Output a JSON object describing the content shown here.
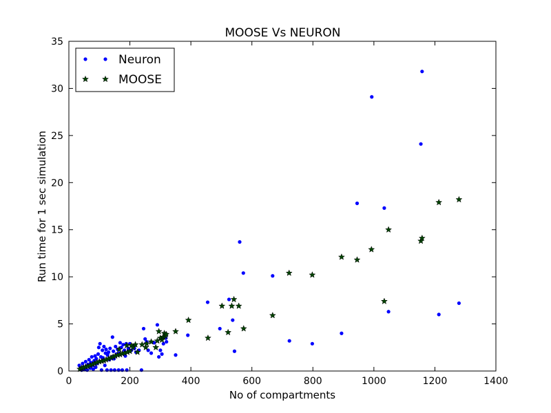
{
  "chart_data": {
    "type": "scatter",
    "title": "MOOSE Vs NEURON",
    "xlabel": "No of compartments",
    "ylabel": "Run time for 1 sec simulation",
    "xlim": [
      0,
      1400
    ],
    "ylim": [
      0,
      35
    ],
    "x_ticks": [
      0,
      200,
      400,
      600,
      800,
      1000,
      1200,
      1400
    ],
    "y_ticks": [
      0,
      5,
      10,
      15,
      20,
      25,
      30,
      35
    ],
    "grid": false,
    "legend_position": "top-left",
    "series": [
      {
        "name": "Neuron",
        "marker": "dot",
        "color": "#0000ff",
        "points": [
          [
            34,
            0.6
          ],
          [
            38,
            0.3
          ],
          [
            42,
            0.1
          ],
          [
            45,
            0.8
          ],
          [
            48,
            0.4
          ],
          [
            52,
            0.2
          ],
          [
            55,
            1.0
          ],
          [
            58,
            0.5
          ],
          [
            60,
            0.1
          ],
          [
            63,
            0.7
          ],
          [
            66,
            1.2
          ],
          [
            70,
            0.3
          ],
          [
            72,
            0.9
          ],
          [
            75,
            1.5
          ],
          [
            78,
            0.6
          ],
          [
            80,
            0.2
          ],
          [
            83,
            1.1
          ],
          [
            86,
            1.6
          ],
          [
            88,
            0.4
          ],
          [
            90,
            1.3
          ],
          [
            93,
            0.8
          ],
          [
            96,
            1.8
          ],
          [
            98,
            2.5
          ],
          [
            100,
            1.0
          ],
          [
            102,
            2.9
          ],
          [
            105,
            1.5
          ],
          [
            107,
            0.1
          ],
          [
            110,
            2.2
          ],
          [
            112,
            1.4
          ],
          [
            115,
            2.6
          ],
          [
            118,
            0.6
          ],
          [
            120,
            1.9
          ],
          [
            122,
            2.3
          ],
          [
            125,
            0.1
          ],
          [
            127,
            1.7
          ],
          [
            130,
            2.0
          ],
          [
            133,
            1.2
          ],
          [
            135,
            2.4
          ],
          [
            138,
            0.1
          ],
          [
            140,
            1.5
          ],
          [
            143,
            3.6
          ],
          [
            146,
            2.1
          ],
          [
            148,
            1.3
          ],
          [
            150,
            0.1
          ],
          [
            153,
            2.6
          ],
          [
            156,
            1.8
          ],
          [
            160,
            2.3
          ],
          [
            163,
            0.1
          ],
          [
            165,
            1.9
          ],
          [
            168,
            3.0
          ],
          [
            172,
            2.5
          ],
          [
            175,
            0.1
          ],
          [
            178,
            2.8
          ],
          [
            182,
            2.2
          ],
          [
            185,
            1.6
          ],
          [
            188,
            2.9
          ],
          [
            190,
            0.1
          ],
          [
            195,
            2.4
          ],
          [
            200,
            2.9
          ],
          [
            205,
            2.2
          ],
          [
            210,
            2.6
          ],
          [
            215,
            2.4
          ],
          [
            220,
            2.0
          ],
          [
            230,
            2.2
          ],
          [
            238,
            0.1
          ],
          [
            245,
            4.5
          ],
          [
            250,
            3.4
          ],
          [
            255,
            3.1
          ],
          [
            260,
            2.2
          ],
          [
            270,
            1.9
          ],
          [
            280,
            3.0
          ],
          [
            290,
            4.9
          ],
          [
            295,
            1.5
          ],
          [
            300,
            2.2
          ],
          [
            305,
            1.8
          ],
          [
            310,
            2.9
          ],
          [
            318,
            3.5
          ],
          [
            320,
            3.1
          ],
          [
            350,
            1.7
          ],
          [
            390,
            3.8
          ],
          [
            455,
            7.3
          ],
          [
            495,
            4.5
          ],
          [
            525,
            7.6
          ],
          [
            537,
            5.4
          ],
          [
            543,
            2.1
          ],
          [
            560,
            13.7
          ],
          [
            572,
            10.4
          ],
          [
            668,
            10.1
          ],
          [
            723,
            3.2
          ],
          [
            798,
            2.9
          ],
          [
            894,
            4.0
          ],
          [
            945,
            17.8
          ],
          [
            993,
            29.1
          ],
          [
            1034,
            17.3
          ],
          [
            1048,
            6.3
          ],
          [
            1154,
            24.1
          ],
          [
            1158,
            31.8
          ],
          [
            1213,
            6.0
          ],
          [
            1279,
            7.2
          ]
        ]
      },
      {
        "name": "MOOSE",
        "marker": "star",
        "color": "#004400",
        "points": [
          [
            36,
            0.2
          ],
          [
            42,
            0.3
          ],
          [
            48,
            0.35
          ],
          [
            55,
            0.45
          ],
          [
            62,
            0.5
          ],
          [
            70,
            0.6
          ],
          [
            78,
            0.7
          ],
          [
            85,
            0.8
          ],
          [
            92,
            0.9
          ],
          [
            100,
            1.0
          ],
          [
            108,
            1.05
          ],
          [
            115,
            1.1
          ],
          [
            122,
            1.2
          ],
          [
            130,
            1.3
          ],
          [
            138,
            1.4
          ],
          [
            145,
            1.5
          ],
          [
            152,
            1.6
          ],
          [
            160,
            1.7
          ],
          [
            165,
            2.3
          ],
          [
            168,
            1.75
          ],
          [
            175,
            1.85
          ],
          [
            183,
            1.9
          ],
          [
            190,
            2.7
          ],
          [
            192,
            2.0
          ],
          [
            200,
            2.1
          ],
          [
            205,
            2.7
          ],
          [
            210,
            2.5
          ],
          [
            218,
            2.8
          ],
          [
            225,
            2.0
          ],
          [
            240,
            2.8
          ],
          [
            252,
            2.5
          ],
          [
            255,
            2.9
          ],
          [
            270,
            3.1
          ],
          [
            285,
            2.5
          ],
          [
            290,
            3.2
          ],
          [
            295,
            4.2
          ],
          [
            300,
            3.5
          ],
          [
            305,
            3.3
          ],
          [
            310,
            3.6
          ],
          [
            313,
            4.0
          ],
          [
            316,
            3.7
          ],
          [
            319,
            3.9
          ],
          [
            350,
            4.2
          ],
          [
            392,
            5.4
          ],
          [
            456,
            3.5
          ],
          [
            502,
            6.9
          ],
          [
            522,
            4.1
          ],
          [
            534,
            6.9
          ],
          [
            541,
            7.6
          ],
          [
            557,
            6.9
          ],
          [
            573,
            4.5
          ],
          [
            668,
            5.9
          ],
          [
            722,
            10.4
          ],
          [
            798,
            10.2
          ],
          [
            894,
            12.1
          ],
          [
            945,
            11.8
          ],
          [
            992,
            12.9
          ],
          [
            1034,
            7.4
          ],
          [
            1048,
            15.0
          ],
          [
            1154,
            13.8
          ],
          [
            1158,
            14.1
          ],
          [
            1213,
            17.9
          ],
          [
            1279,
            18.2
          ]
        ]
      }
    ]
  }
}
